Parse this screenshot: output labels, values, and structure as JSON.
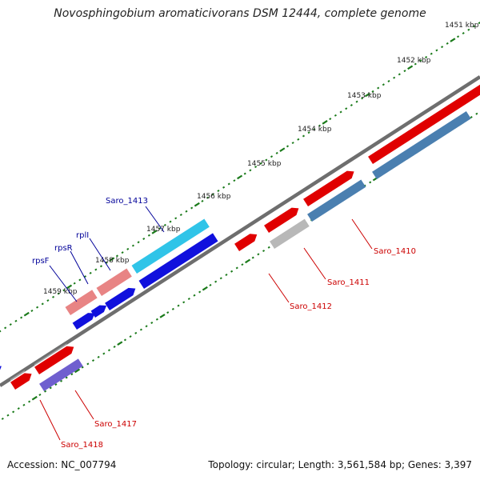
{
  "title": "Novosphingobium aromaticivorans DSM 12444, complete genome",
  "accession": "Accession: NC_007794",
  "summary": "Topology: circular; Length: 3,561,584 bp; Genes: 3,397",
  "kbp_ticks": [
    "1451 kbp",
    "1452 kbp",
    "1453 kbp",
    "1454 kbp",
    "1455 kbp",
    "1456 kbp",
    "1457 kbp",
    "1458 kbp",
    "1459 kbp"
  ],
  "gene_labels": {
    "saro_1410": "Saro_1410",
    "saro_1411": "Saro_1411",
    "saro_1412": "Saro_1412",
    "saro_1413": "Saro_1413",
    "saro_1417": "Saro_1417",
    "saro_1418": "Saro_1418",
    "rpsF": "rpsF",
    "rpsR": "rpsR",
    "rplI": "rplI"
  },
  "colors": {
    "forward_gene": "#e00000",
    "reverse_gene": "#1010dd",
    "cds_steelblue": "#4a7fb0",
    "cds_cyan": "#30c4e8",
    "cds_pink": "#e88484",
    "cds_purple": "#6f5fcf",
    "cds_gray": "#b8b8b8",
    "backbone": "#777777",
    "tick_marks": "#1a7a1a"
  }
}
